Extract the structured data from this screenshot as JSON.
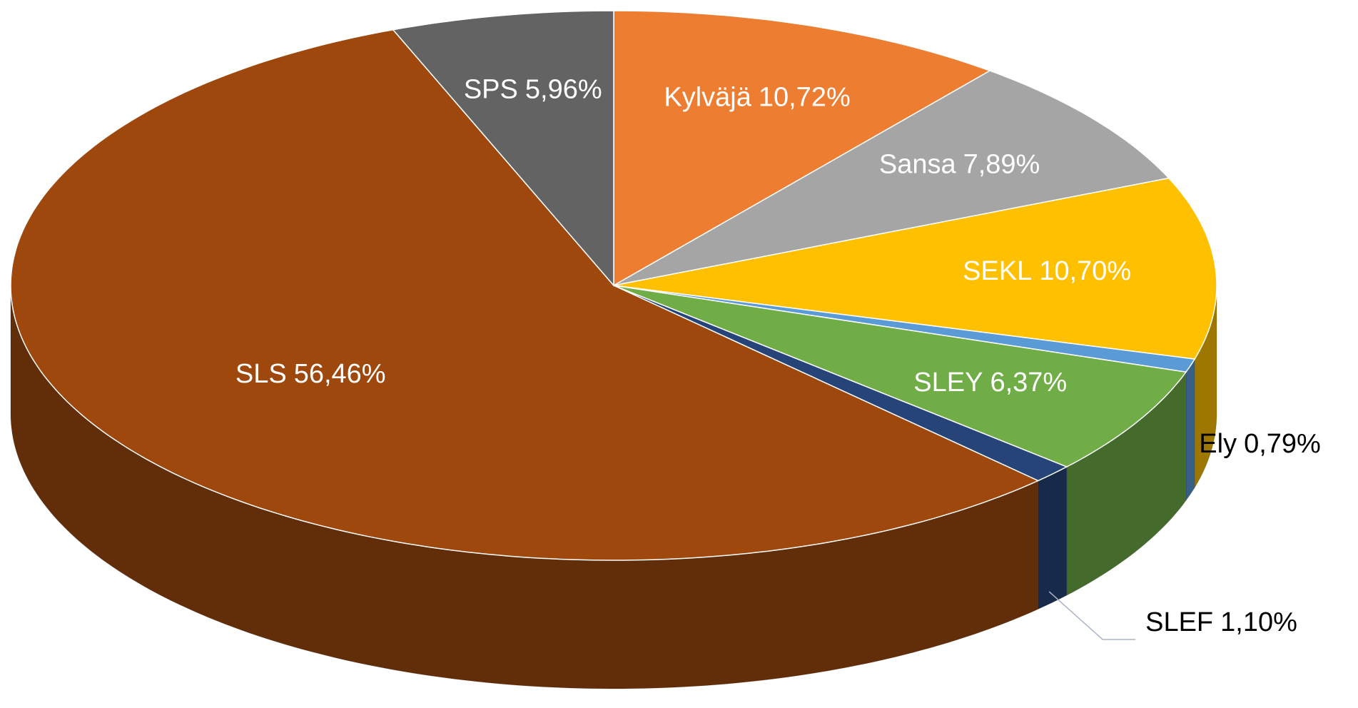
{
  "chart_data": {
    "type": "pie3d",
    "categories": [
      "Kylväjä",
      "Sansa",
      "SEKL",
      "Ely",
      "SLEY",
      "SLEF",
      "SLS",
      "SPS"
    ],
    "values": [
      10.72,
      7.89,
      10.7,
      0.79,
      6.37,
      1.1,
      56.46,
      5.96
    ],
    "value_labels": [
      "10,72%",
      "7,89%",
      "10,70%",
      "0,79%",
      "6,37%",
      "1,10%",
      "56,46%",
      "5,96%"
    ],
    "colors": [
      "#ed7d31",
      "#a5a5a5",
      "#ffc000",
      "#5b9bd5",
      "#70ad47",
      "#264478",
      "#9e480e",
      "#636363"
    ]
  }
}
